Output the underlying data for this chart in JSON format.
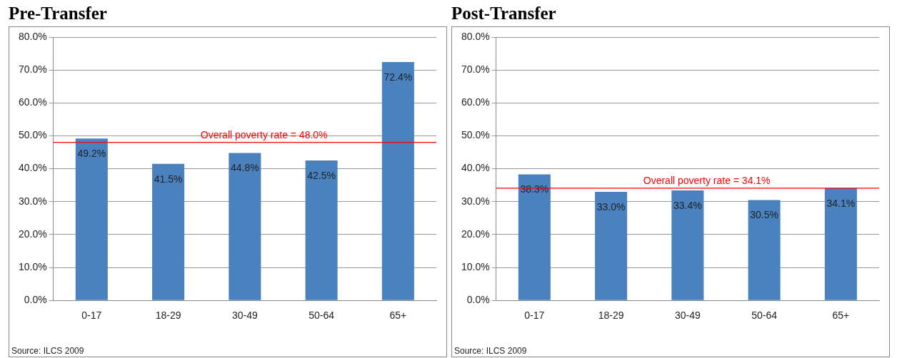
{
  "chart_data": [
    {
      "type": "bar",
      "title": "Pre-Transfer",
      "categories": [
        "0-17",
        "18-29",
        "30-49",
        "50-64",
        "65+"
      ],
      "values": [
        49.2,
        41.5,
        44.8,
        42.5,
        72.4
      ],
      "value_labels": [
        "49.2%",
        "41.5%",
        "44.8%",
        "42.5%",
        "72.4%"
      ],
      "color": "#4a82c0",
      "ylim": [
        0,
        80
      ],
      "yticks": [
        {
          "value": 0,
          "label": "0.0%"
        },
        {
          "value": 10,
          "label": "10.0%"
        },
        {
          "value": 20,
          "label": "20.0%"
        },
        {
          "value": 30,
          "label": "30.0%"
        },
        {
          "value": 40,
          "label": "40.0%"
        },
        {
          "value": 50,
          "label": "50.0%"
        },
        {
          "value": 60,
          "label": "60.0%"
        },
        {
          "value": 70,
          "label": "70.0%"
        },
        {
          "value": 80,
          "label": "80.0%"
        }
      ],
      "grid": "y",
      "legend": false,
      "ref_lines": [
        {
          "axis": "y",
          "value": 48.0,
          "label": "Overall poverty rate = 48.0%",
          "color": "#ff0000"
        }
      ],
      "annotations": [
        "Source: ILCS 2009"
      ]
    },
    {
      "type": "bar",
      "title": "Post-Transfer",
      "categories": [
        "0-17",
        "18-29",
        "30-49",
        "50-64",
        "65+"
      ],
      "values": [
        38.3,
        33.0,
        33.4,
        30.5,
        34.1
      ],
      "value_labels": [
        "38.3%",
        "33.0%",
        "33.4%",
        "30.5%",
        "34.1%"
      ],
      "color": "#4a82c0",
      "ylim": [
        0,
        80
      ],
      "yticks": [
        {
          "value": 0,
          "label": "0.0%"
        },
        {
          "value": 10,
          "label": "10.0%"
        },
        {
          "value": 20,
          "label": "20.0%"
        },
        {
          "value": 30,
          "label": "30.0%"
        },
        {
          "value": 40,
          "label": "40.0%"
        },
        {
          "value": 50,
          "label": "50.0%"
        },
        {
          "value": 60,
          "label": "60.0%"
        },
        {
          "value": 70,
          "label": "70.0%"
        },
        {
          "value": 80,
          "label": "80.0%"
        }
      ],
      "grid": "y",
      "legend": false,
      "ref_lines": [
        {
          "axis": "y",
          "value": 34.1,
          "label": "Overall poverty rate = 34.1%",
          "color": "#ff0000"
        }
      ],
      "annotations": [
        "Source: ILCS 2009"
      ]
    }
  ]
}
